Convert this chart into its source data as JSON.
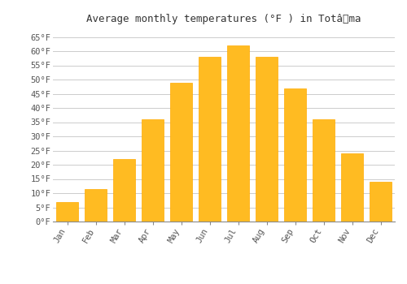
{
  "title": "Average monthly temperatures (°F ) in Totâ​ma",
  "months": [
    "Jan",
    "Feb",
    "Mar",
    "Apr",
    "May",
    "Jun",
    "Jul",
    "Aug",
    "Sep",
    "Oct",
    "Nov",
    "Dec"
  ],
  "values": [
    7,
    11.5,
    22,
    36,
    49,
    58,
    62,
    58,
    47,
    36,
    24,
    14
  ],
  "bar_color": "#FFBB22",
  "bar_edge_color": "#FFAA00",
  "ylim": [
    0,
    68
  ],
  "yticks": [
    0,
    5,
    10,
    15,
    20,
    25,
    30,
    35,
    40,
    45,
    50,
    55,
    60,
    65
  ],
  "ytick_labels": [
    "0°F",
    "5°F",
    "10°F",
    "15°F",
    "20°F",
    "25°F",
    "30°F",
    "35°F",
    "40°F",
    "45°F",
    "50°F",
    "55°F",
    "60°F",
    "65°F"
  ],
  "title_fontsize": 9,
  "tick_fontsize": 7.5,
  "background_color": "#ffffff",
  "grid_color": "#cccccc",
  "figsize": [
    5.0,
    3.5
  ],
  "dpi": 100
}
